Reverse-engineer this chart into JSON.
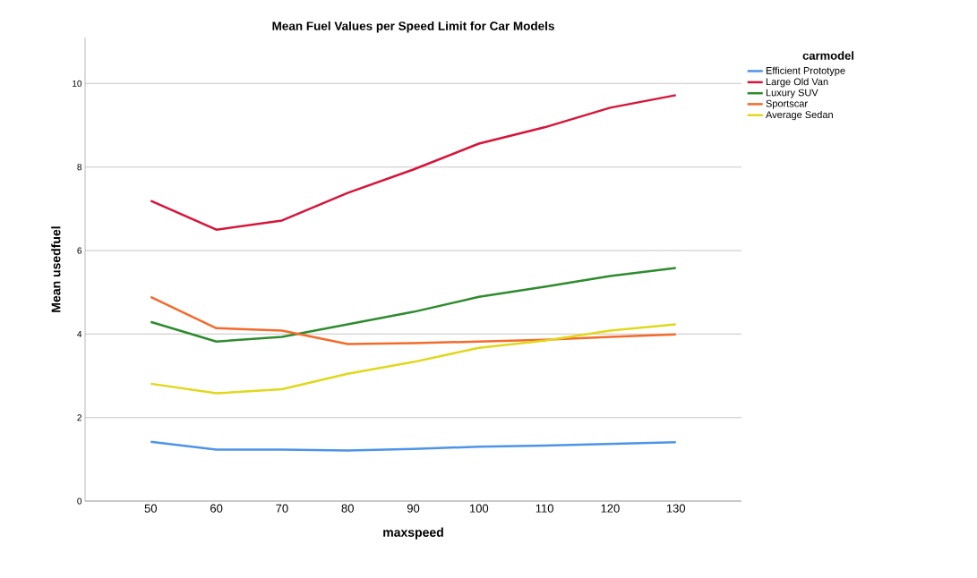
{
  "chart_data": {
    "type": "line",
    "title": "Mean Fuel Values per Speed Limit for Car Models",
    "xlabel": "maxspeed",
    "ylabel": "Mean usedfuel",
    "legend_title": "carmodel",
    "x": [
      50,
      60,
      70,
      80,
      90,
      100,
      110,
      120,
      130
    ],
    "series": [
      {
        "name": "Efficient Prototype",
        "color": "#4d94e8",
        "values": [
          1.42,
          1.23,
          1.23,
          1.21,
          1.25,
          1.3,
          1.33,
          1.37,
          1.41
        ]
      },
      {
        "name": "Large Old Van",
        "color": "#d7153a",
        "values": [
          7.19,
          6.5,
          6.72,
          7.38,
          7.94,
          8.56,
          8.95,
          9.42,
          9.72
        ]
      },
      {
        "name": "Luxury SUV",
        "color": "#2e8b2e",
        "values": [
          4.29,
          3.82,
          3.93,
          4.23,
          4.53,
          4.89,
          5.13,
          5.39,
          5.58
        ]
      },
      {
        "name": "Sportscar",
        "color": "#f26b2a",
        "values": [
          4.89,
          4.14,
          4.08,
          3.76,
          3.78,
          3.82,
          3.86,
          3.93,
          3.99
        ]
      },
      {
        "name": "Average Sedan",
        "color": "#e0d81a",
        "values": [
          2.81,
          2.58,
          2.68,
          3.05,
          3.33,
          3.67,
          3.84,
          4.08,
          4.23
        ]
      }
    ],
    "xlim": [
      40,
      140
    ],
    "xticks": [
      50,
      60,
      70,
      80,
      90,
      100,
      110,
      120,
      130
    ],
    "ylim": [
      0,
      11.1
    ],
    "yticks": [
      0,
      2,
      4,
      6,
      8,
      10
    ],
    "grid": "y",
    "legend": "top right"
  }
}
